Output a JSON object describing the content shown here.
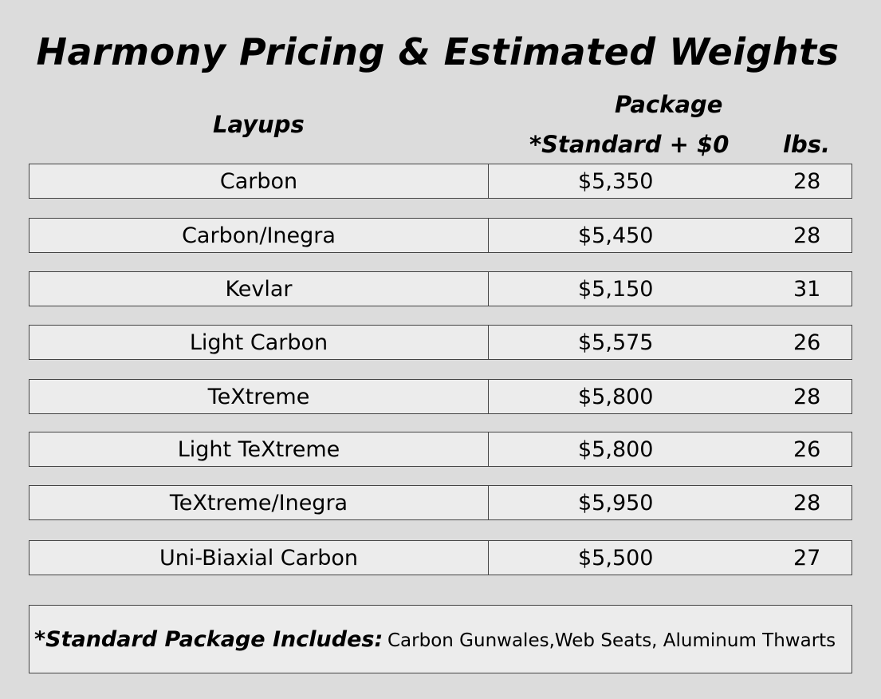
{
  "title": "Harmony Pricing & Estimated Weights",
  "headers": {
    "layups": "Layups",
    "package": "Package",
    "standard": "*Standard + $0",
    "lbs": "lbs."
  },
  "rows": [
    {
      "layup": "Carbon",
      "price": "$5,350",
      "lbs": "28"
    },
    {
      "layup": "Carbon/Inegra",
      "price": "$5,450",
      "lbs": "28"
    },
    {
      "layup": "Kevlar",
      "price": "$5,150",
      "lbs": "31"
    },
    {
      "layup": "Light Carbon",
      "price": "$5,575",
      "lbs": "26"
    },
    {
      "layup": "TeXtreme",
      "price": "$5,800",
      "lbs": "28"
    },
    {
      "layup": "Light TeXtreme",
      "price": "$5,800",
      "lbs": "26"
    },
    {
      "layup": "TeXtreme/Inegra",
      "price": "$5,950",
      "lbs": "28"
    },
    {
      "layup": "Uni-Biaxial Carbon",
      "price": "$5,500",
      "lbs": "27"
    }
  ],
  "note": {
    "label": "*Standard Package Includes:",
    "text": "Carbon Gunwales,Web Seats, Aluminum Thwarts"
  }
}
